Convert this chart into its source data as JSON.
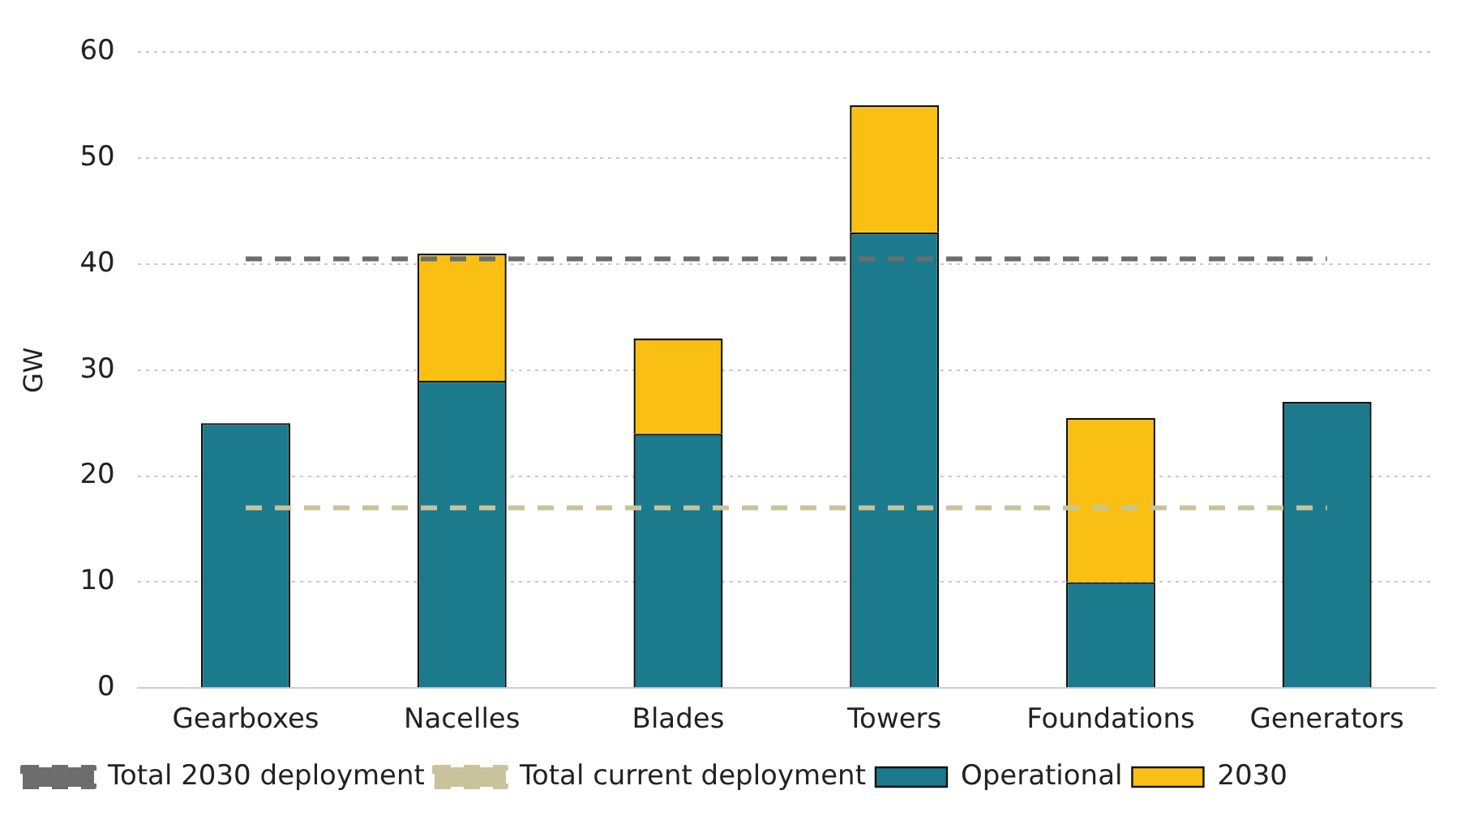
{
  "chart_data": {
    "type": "bar",
    "ylabel": "GW",
    "stacked": true,
    "categories": [
      "Gearboxes",
      "Nacelles",
      "Blades",
      "Towers",
      "Foundations",
      "Generators"
    ],
    "series": [
      {
        "name": "Operational",
        "color": "#1b7a8c",
        "values": [
          25,
          29,
          24,
          43,
          10,
          27
        ]
      },
      {
        "name": "2030",
        "color": "#f9c013",
        "values": [
          null,
          12,
          9,
          12,
          15.5,
          null
        ]
      },
      {
        "name": "Total 2030 deployment",
        "type": "line",
        "color": "#6d6d6d",
        "line_style": "dashed",
        "values": [
          40.5,
          40.5,
          40.5,
          40.5,
          40.5,
          40.5
        ]
      },
      {
        "name": "Total current deployment",
        "type": "line",
        "color": "#c8c39a",
        "line_style": "dashed",
        "values": [
          17,
          17,
          17,
          17,
          17,
          17
        ]
      }
    ],
    "ylim": [
      0,
      60
    ],
    "yticks": [
      0,
      10,
      20,
      30,
      40,
      50,
      60
    ],
    "grid": "y",
    "legend": "bottom",
    "marker": "none"
  }
}
